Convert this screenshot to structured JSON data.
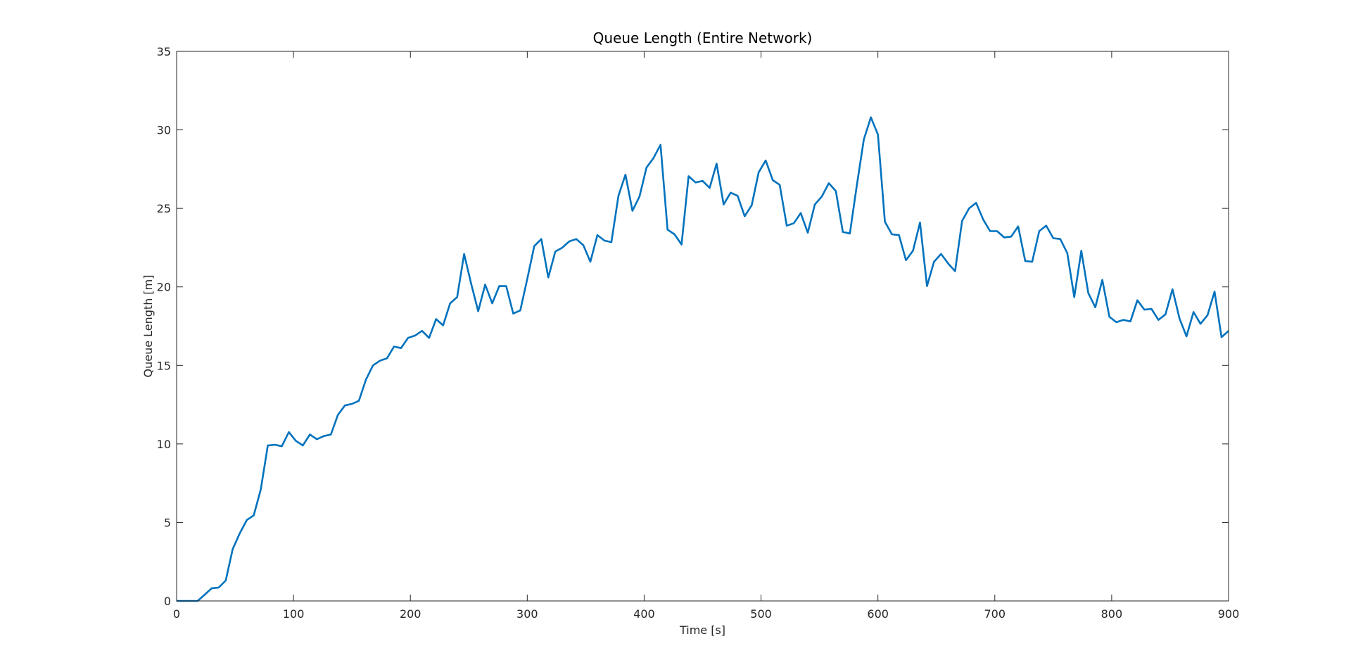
{
  "chart_data": {
    "type": "line",
    "title": "Queue Length (Entire Network)",
    "xlabel": "Time [s]",
    "ylabel": "Queue Length [m]",
    "xlim": [
      0,
      900
    ],
    "ylim": [
      0,
      35
    ],
    "xticks": [
      0,
      100,
      200,
      300,
      400,
      500,
      600,
      700,
      800,
      900
    ],
    "yticks": [
      0,
      5,
      10,
      15,
      20,
      25,
      30,
      35
    ],
    "xtick_labels": [
      "0",
      "100",
      "200",
      "300",
      "400",
      "500",
      "600",
      "700",
      "800",
      "900"
    ],
    "ytick_labels": [
      "0",
      "5",
      "10",
      "15",
      "20",
      "25",
      "30",
      "35"
    ],
    "grid": false,
    "box": true,
    "color": "#0072BD",
    "series": [
      {
        "x": [
          0,
          6,
          12,
          18,
          24,
          30,
          36,
          42,
          48,
          54,
          60,
          66,
          72,
          78,
          84,
          90,
          96,
          102,
          108,
          114,
          120,
          126,
          132,
          138,
          144,
          150,
          156,
          162,
          168,
          174,
          180,
          186,
          192,
          198,
          204,
          210,
          216,
          222,
          228,
          234,
          240,
          246,
          252,
          258,
          264,
          270,
          276,
          282,
          288,
          294,
          300,
          306,
          312,
          318,
          324,
          330,
          336,
          342,
          348,
          354,
          360,
          366,
          372,
          378,
          384,
          390,
          396,
          402,
          408,
          414,
          420,
          426,
          432,
          438,
          444,
          450,
          456,
          462,
          468,
          474,
          480,
          486,
          492,
          498,
          504,
          510,
          516,
          522,
          528,
          534,
          540,
          546,
          552,
          558,
          564,
          570,
          576,
          582,
          588,
          594,
          600,
          606,
          612,
          618,
          624,
          630,
          636,
          642,
          648,
          654,
          660,
          666,
          672,
          678,
          684,
          690,
          696,
          702,
          708,
          714,
          720,
          726,
          732,
          738,
          744,
          750,
          756,
          762,
          768,
          774,
          780,
          786,
          792,
          798,
          804,
          810,
          816,
          822,
          828,
          834,
          840,
          846,
          852,
          858,
          864,
          870,
          876,
          882,
          888,
          894,
          900
        ],
        "values": [
          0,
          0,
          0,
          0,
          0.4,
          0.8,
          0.85,
          1.3,
          3.3,
          4.3,
          5.15,
          5.45,
          7.1,
          9.9,
          9.95,
          9.85,
          10.75,
          10.2,
          9.9,
          10.6,
          10.3,
          10.5,
          10.6,
          11.85,
          12.45,
          12.55,
          12.75,
          14.1,
          15.0,
          15.3,
          15.45,
          16.2,
          16.1,
          16.75,
          16.9,
          17.2,
          16.75,
          17.95,
          17.55,
          18.95,
          19.35,
          22.1,
          20.2,
          18.45,
          20.15,
          18.95,
          20.05,
          20.05,
          18.3,
          18.5,
          20.5,
          22.6,
          23.05,
          20.6,
          22.25,
          22.5,
          22.9,
          23.05,
          22.65,
          21.6,
          23.3,
          22.95,
          22.85,
          25.8,
          27.15,
          24.85,
          25.75,
          27.6,
          28.2,
          29.05,
          23.65,
          23.35,
          22.7,
          27.05,
          26.65,
          26.75,
          26.3,
          27.85,
          25.25,
          26.0,
          25.8,
          24.5,
          25.2,
          27.3,
          28.05,
          26.8,
          26.5,
          23.9,
          24.05,
          24.7,
          23.45,
          25.25,
          25.75,
          26.6,
          26.1,
          23.5,
          23.4,
          26.5,
          29.4,
          30.8,
          29.7,
          24.15,
          23.35,
          23.3,
          21.7,
          22.3,
          24.1,
          20.05,
          21.6,
          22.1,
          21.5,
          21.0,
          24.2,
          25.0,
          25.35,
          24.3,
          23.55,
          23.55,
          23.15,
          23.2,
          23.85,
          21.65,
          21.6,
          23.55,
          23.9,
          23.1,
          23.05,
          22.15,
          19.35,
          22.3,
          19.6,
          18.7,
          20.45,
          18.1,
          17.75,
          17.9,
          17.8,
          19.15,
          18.55,
          18.6,
          17.9,
          18.25,
          19.85,
          18.0,
          16.85,
          18.4,
          17.65,
          18.2,
          19.7,
          16.8,
          17.2
        ]
      }
    ]
  }
}
